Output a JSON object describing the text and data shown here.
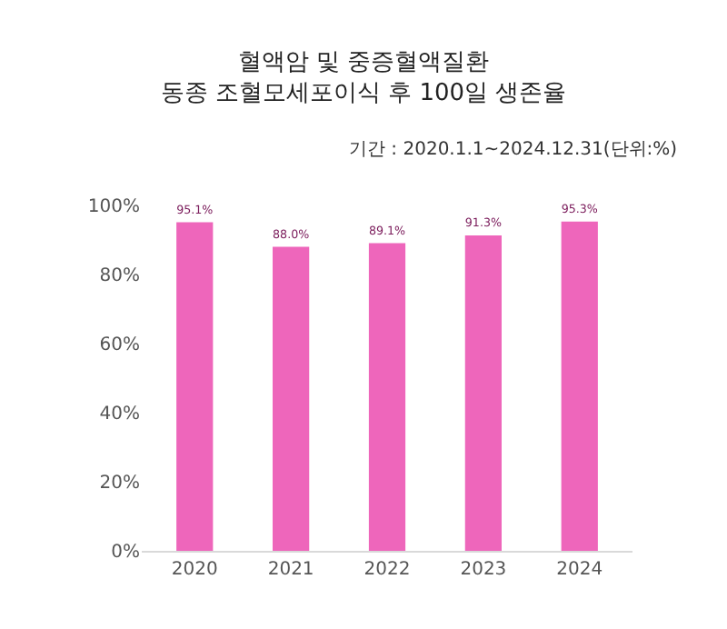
{
  "chart_data": {
    "type": "bar",
    "title": "혈액암 및 중증혈액질환\n동종 조혈모세포이식 후 100일 생존율",
    "subtitle": "기간 : 2020.1.1~2024.12.31(단위:%)",
    "categories": [
      "2020",
      "2021",
      "2022",
      "2023",
      "2024"
    ],
    "values": [
      95.1,
      88.0,
      89.1,
      91.3,
      95.3
    ],
    "value_labels": [
      "95.1%",
      "88.0%",
      "89.1%",
      "91.3%",
      "95.3%"
    ],
    "color": "#ee66bb",
    "ylim": [
      0,
      100
    ],
    "yticks": [
      {
        "value": 0,
        "label": "0%"
      },
      {
        "value": 20,
        "label": "20%"
      },
      {
        "value": 40,
        "label": "40%"
      },
      {
        "value": 60,
        "label": "60%"
      },
      {
        "value": 80,
        "label": "80%"
      },
      {
        "value": 100,
        "label": "100%"
      }
    ]
  }
}
